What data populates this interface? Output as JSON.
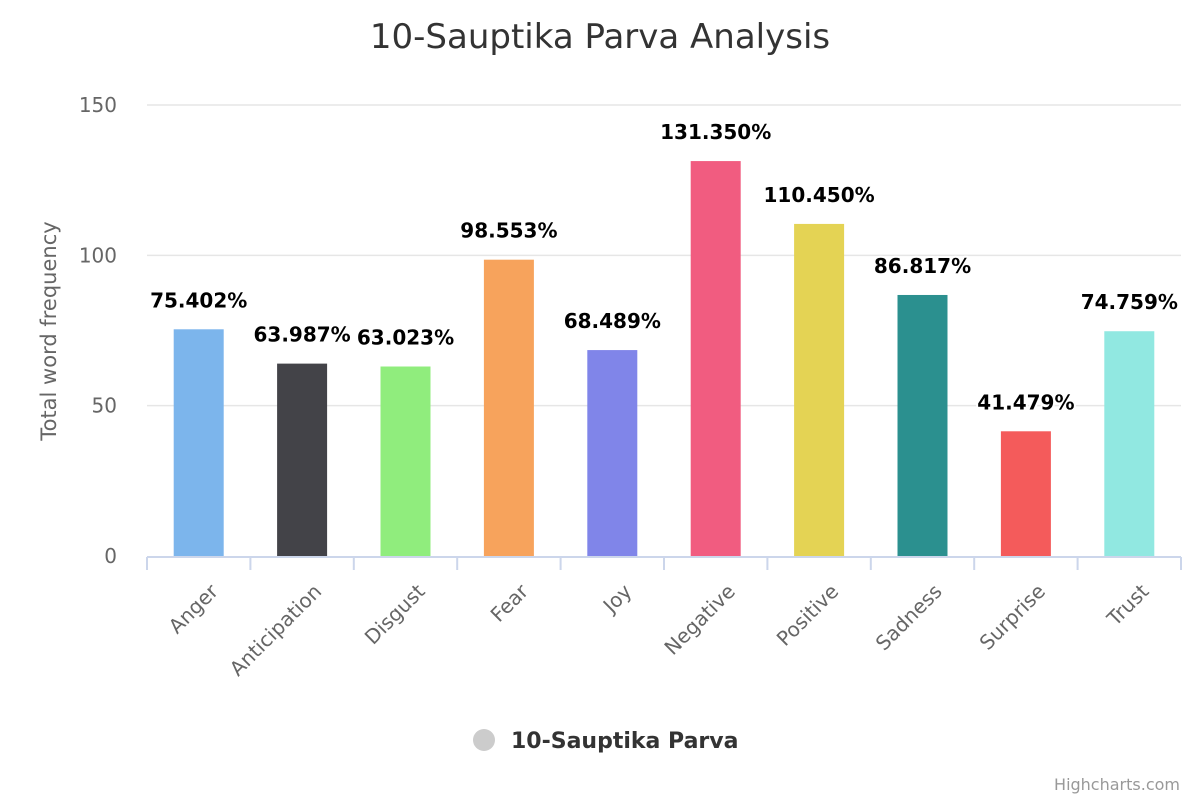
{
  "chart_data": {
    "type": "bar",
    "title": "10-Sauptika Parva Analysis",
    "ylabel": "Total word frequency",
    "ylim": [
      0,
      150
    ],
    "yticks": [
      "0",
      "50",
      "100",
      "150"
    ],
    "grid": true,
    "categories": [
      "Anger",
      "Anticipation",
      "Disgust",
      "Fear",
      "Joy",
      "Negative",
      "Positive",
      "Sadness",
      "Surprise",
      "Trust"
    ],
    "values": [
      75.402,
      63.987,
      63.023,
      98.553,
      68.489,
      131.35,
      110.45,
      86.817,
      41.479,
      74.759
    ],
    "data_labels": [
      "75.402%",
      "63.987%",
      "63.023%",
      "98.553%",
      "68.489%",
      "131.350%",
      "110.450%",
      "86.817%",
      "41.479%",
      "74.759%"
    ],
    "colors": [
      "#7cb5ec",
      "#434348",
      "#90ed7d",
      "#f7a35c",
      "#8085e9",
      "#f15c80",
      "#e4d354",
      "#2b908f",
      "#f45b5b",
      "#91e8e1"
    ],
    "series": [
      {
        "name": "10-Sauptika Parva"
      }
    ],
    "legend_position": "bottom-center",
    "legend_symbol_color": "#cccccc"
  },
  "credits": "Highcharts.com"
}
